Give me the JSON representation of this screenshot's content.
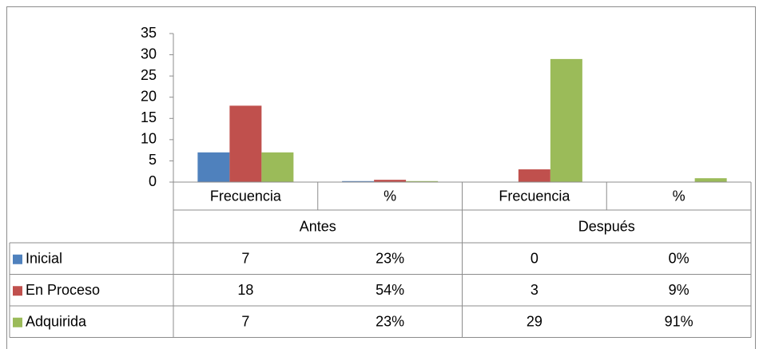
{
  "chart_data": {
    "type": "bar",
    "groups": [
      {
        "name": "Antes",
        "categories": [
          "Frecuencia",
          "%"
        ]
      },
      {
        "name": "Después",
        "categories": [
          "Frecuencia",
          "%"
        ]
      }
    ],
    "series": [
      {
        "name": "Inicial",
        "color": "#4f81bd",
        "values": [
          7,
          0.23,
          0,
          0
        ],
        "value_labels": [
          "7",
          "23%",
          "0",
          "0%"
        ]
      },
      {
        "name": "En Proceso",
        "color": "#c0504d",
        "values": [
          18,
          0.54,
          3,
          0.09
        ],
        "value_labels": [
          "18",
          "54%",
          "3",
          "9%"
        ]
      },
      {
        "name": "Adquirida",
        "color": "#9bbb59",
        "values": [
          7,
          0.23,
          29,
          0.91
        ],
        "value_labels": [
          "7",
          "23%",
          "29",
          "91%"
        ]
      }
    ],
    "ylim": [
      0,
      35
    ],
    "yticks": [
      0,
      5,
      10,
      15,
      20,
      25,
      30,
      35
    ],
    "grid": false,
    "legend": "table"
  }
}
